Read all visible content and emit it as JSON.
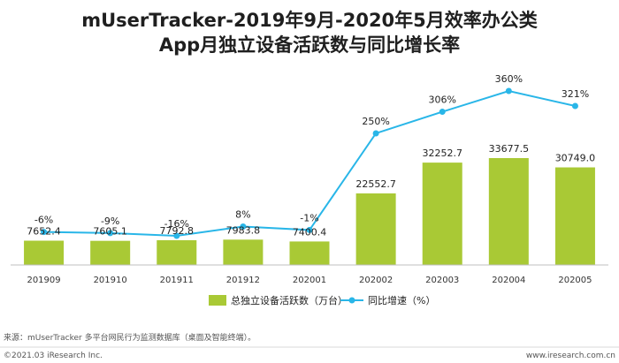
{
  "title_line1": "mUserTracker-2019年9月-2020年5月效率办公类",
  "title_line2": "App月独立设备活跃数与同比增长率",
  "source_text": "来源：mUserTracker 多平台网民行为监测数据库（桌面及智能终端）。",
  "copyright_text": "©2021.03 iResearch Inc.",
  "website_text": "www.iresearch.com.cn",
  "colors": {
    "bar": "#a9c935",
    "line": "#29b6e8",
    "axis": "#bfbfbf"
  },
  "chart_data": {
    "type": "bar",
    "categories": [
      "201909",
      "201910",
      "201911",
      "201912",
      "202001",
      "202002",
      "202003",
      "202004",
      "202005"
    ],
    "series": [
      {
        "name": "总独立设备活跃数（万台）",
        "type": "bar",
        "values": [
          7652.4,
          7605.1,
          7792.8,
          7983.8,
          7400.4,
          22552.7,
          32252.7,
          33677.5,
          30749.0
        ],
        "labels": [
          "7652.4",
          "7605.1",
          "7792.8",
          "7983.8",
          "7400.4",
          "22552.7",
          "32252.7",
          "33677.5",
          "30749.0"
        ]
      },
      {
        "name": "同比增速（%）",
        "type": "line",
        "values": [
          -6,
          -9,
          -16,
          8,
          -1,
          250,
          306,
          360,
          321
        ],
        "labels": [
          "-6%",
          "-9%",
          "-16%",
          "8%",
          "-1%",
          "250%",
          "306%",
          "360%",
          "321%"
        ]
      }
    ],
    "title": "mUserTracker-2019年9月-2020年5月效率办公类App月独立设备活跃数与同比增长率",
    "legend_position": "bottom-center",
    "grid": false
  }
}
